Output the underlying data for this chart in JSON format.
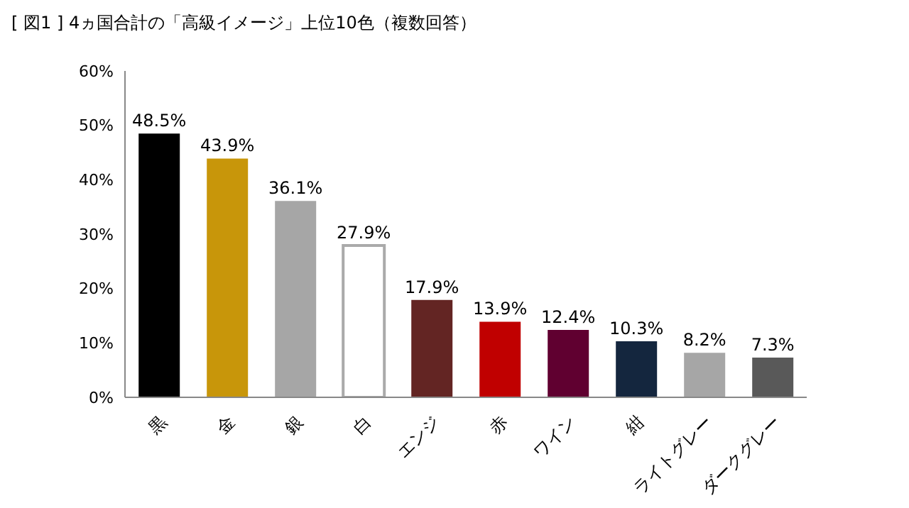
{
  "chart_data": {
    "type": "bar",
    "title": "[ 図1 ] 4ヵ国合計の「高級イメージ」上位10色（複数回答）",
    "categories": [
      "黒",
      "金",
      "銀",
      "白",
      "エンジ",
      "赤",
      "ワイン",
      "紺",
      "ライトグレー",
      "ダークグレー"
    ],
    "values": [
      48.5,
      43.9,
      36.1,
      27.9,
      17.9,
      13.9,
      12.4,
      10.3,
      8.2,
      7.3
    ],
    "value_labels": [
      "48.5%",
      "43.9%",
      "36.1%",
      "27.9%",
      "17.9%",
      "13.9%",
      "12.4%",
      "10.3%",
      "8.2%",
      "7.3%"
    ],
    "colors": [
      "#000000",
      "#c8960a",
      "#a6a6a6",
      "#ffffff",
      "#632523",
      "#c00000",
      "#600030",
      "#14263e",
      "#a6a6a6",
      "#595959"
    ],
    "ylim": [
      0,
      60
    ],
    "yticks": [
      {
        "value": 0,
        "label": "0%"
      },
      {
        "value": 10,
        "label": "10%"
      },
      {
        "value": 20,
        "label": "20%"
      },
      {
        "value": 30,
        "label": "30%"
      },
      {
        "value": 40,
        "label": "40%"
      },
      {
        "value": 50,
        "label": "50%"
      },
      {
        "value": 60,
        "label": "60%"
      }
    ],
    "grid": false,
    "legend": false
  }
}
